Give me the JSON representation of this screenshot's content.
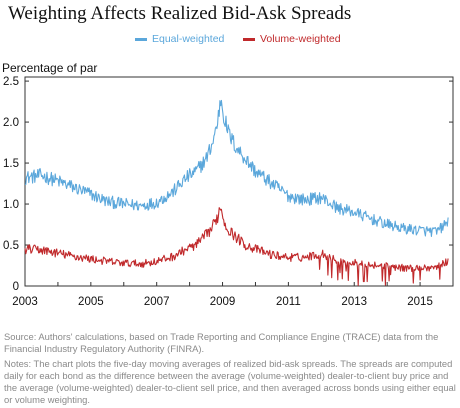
{
  "chart_data": {
    "type": "line",
    "title": "Weighting Affects Realized Bid-Ask Spreads",
    "ylabel": "Percentage of par",
    "xlabel": "",
    "xlim": [
      2003,
      2016
    ],
    "ylim": [
      0,
      2.55
    ],
    "x_ticks": [
      2003,
      2005,
      2007,
      2009,
      2011,
      2013,
      2015
    ],
    "y_ticks": [
      "0",
      "0.5",
      "1.0",
      "1.5",
      "2.0",
      "2.5"
    ],
    "y_tick_values": [
      0,
      0.5,
      1.0,
      1.5,
      2.0,
      2.5
    ],
    "grid": false,
    "legend_position": "top-center",
    "series": [
      {
        "name": "Equal-weighted",
        "color": "#5ba7db",
        "x": [
          2003.0,
          2003.5,
          2004.0,
          2004.5,
          2005.0,
          2005.5,
          2006.0,
          2006.5,
          2007.0,
          2007.5,
          2007.9,
          2008.2,
          2008.5,
          2008.7,
          2008.85,
          2008.95,
          2009.05,
          2009.2,
          2009.4,
          2009.7,
          2010.0,
          2010.5,
          2011.0,
          2011.5,
          2012.0,
          2012.5,
          2013.0,
          2013.5,
          2014.0,
          2014.5,
          2015.0,
          2015.5,
          2015.85
        ],
        "values": [
          1.32,
          1.35,
          1.28,
          1.2,
          1.12,
          1.03,
          1.0,
          0.98,
          1.02,
          1.15,
          1.32,
          1.4,
          1.55,
          1.75,
          2.0,
          2.3,
          2.05,
          1.85,
          1.7,
          1.55,
          1.4,
          1.25,
          1.1,
          1.05,
          1.08,
          0.95,
          0.9,
          0.82,
          0.75,
          0.7,
          0.68,
          0.66,
          0.78
        ]
      },
      {
        "name": "Volume-weighted",
        "color": "#c0292b",
        "x": [
          2003.0,
          2003.5,
          2004.0,
          2004.5,
          2005.0,
          2005.5,
          2006.0,
          2006.5,
          2007.0,
          2007.5,
          2007.9,
          2008.2,
          2008.5,
          2008.7,
          2008.85,
          2008.95,
          2009.05,
          2009.2,
          2009.4,
          2009.7,
          2010.0,
          2010.5,
          2011.0,
          2011.5,
          2012.0,
          2012.5,
          2013.0,
          2013.5,
          2014.0,
          2014.5,
          2015.0,
          2015.5,
          2015.85
        ],
        "values": [
          0.45,
          0.44,
          0.4,
          0.36,
          0.33,
          0.3,
          0.28,
          0.27,
          0.3,
          0.36,
          0.45,
          0.5,
          0.62,
          0.72,
          0.85,
          0.98,
          0.78,
          0.68,
          0.6,
          0.5,
          0.45,
          0.38,
          0.35,
          0.35,
          0.4,
          0.3,
          0.28,
          0.26,
          0.24,
          0.22,
          0.22,
          0.23,
          0.3
        ]
      }
    ]
  },
  "source_text": "Source: Authors' calculations, based on Trade Reporting and Compliance Engine (TRACE) data from the Financial Industry Regulatory Authority (FINRA).",
  "notes_text": "Notes: The chart plots the five-day moving averages of realized bid-ask spreads. The spreads are computed daily for each bond as the difference between the average (volume-weighted) dealer-to-client buy price and the average (volume-weighted) dealer-to-client sell price, and then averaged across bonds using either equal or volume weighting."
}
